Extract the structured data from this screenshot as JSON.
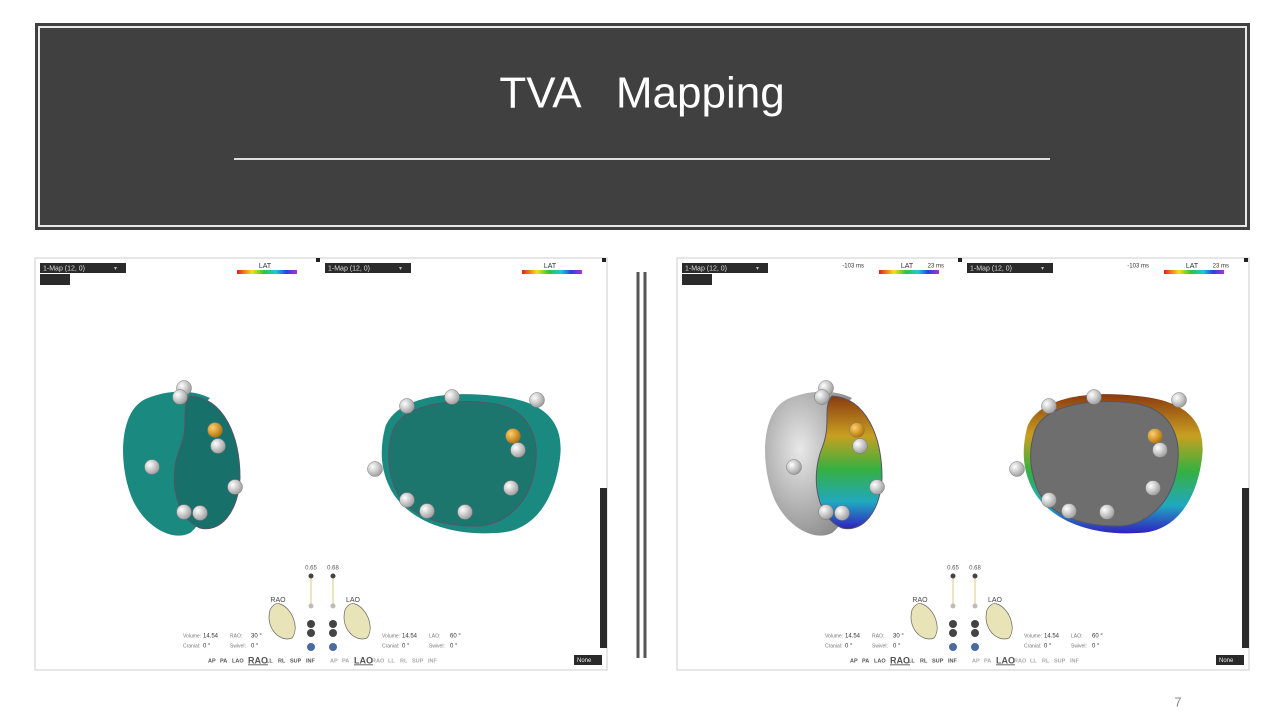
{
  "header": {
    "title": "TVA   Mapping"
  },
  "page_number": "7",
  "panels": [
    {
      "views": [
        {
          "map_label": "1-Map (12, 0)",
          "legend_label": "LAT"
        },
        {
          "map_label": "1-Map (12, 0)",
          "legend_label": "LAT"
        }
      ],
      "controls": {
        "sliders": [
          "0.65",
          "0.68"
        ],
        "orientations": [
          {
            "name": "RAO",
            "volume_label": "Volume:",
            "volume": "14.54",
            "angle_label": "RAO:",
            "angle": "30 °",
            "cranial_label": "Cranial:",
            "cranial": "0 °",
            "swivel_label": "Swivel:",
            "swivel": "0 °"
          },
          {
            "name": "LAO",
            "volume_label": "Volume:",
            "volume": "14.54",
            "angle_label": "LAO:",
            "angle": "60 °",
            "cranial_label": "Cranial:",
            "cranial": "0 °",
            "swivel_label": "Swivel:",
            "swivel": "0 °"
          }
        ],
        "view_buttons": [
          [
            "AP",
            "PA",
            "LAO",
            "RAO",
            "LL",
            "RL",
            "SUP",
            "INF"
          ],
          [
            "AP",
            "PA",
            "LAO",
            "RAO",
            "LL",
            "RL",
            "SUP",
            "INF"
          ]
        ],
        "dropdown": "None"
      }
    },
    {
      "views": [
        {
          "map_label": "1-Map (12, 0)",
          "legend_label": "LAT",
          "range_min": "-103 ms",
          "range_max": "23 ms"
        },
        {
          "map_label": "1-Map (12, 0)",
          "legend_label": "LAT",
          "range_min": "-103 ms",
          "range_max": "23 ms"
        }
      ],
      "controls": {
        "sliders": [
          "0.65",
          "0.68"
        ],
        "orientations": [
          {
            "name": "RAO",
            "volume_label": "Volume:",
            "volume": "14.54",
            "angle_label": "RAO:",
            "angle": "30 °",
            "cranial_label": "Cranial:",
            "cranial": "0 °",
            "swivel_label": "Swivel:",
            "swivel": "0 °"
          },
          {
            "name": "LAO",
            "volume_label": "Volume:",
            "volume": "14.54",
            "angle_label": "LAO:",
            "angle": "60 °",
            "cranial_label": "Cranial:",
            "cranial": "0 °",
            "swivel_label": "Swivel:",
            "swivel": "0 °"
          }
        ],
        "view_buttons": [
          [
            "AP",
            "PA",
            "LAO",
            "RAO",
            "LL",
            "RL",
            "SUP",
            "INF"
          ],
          [
            "AP",
            "PA",
            "LAO",
            "RAO",
            "LL",
            "RL",
            "SUP",
            "INF"
          ]
        ],
        "dropdown": "None"
      }
    }
  ]
}
